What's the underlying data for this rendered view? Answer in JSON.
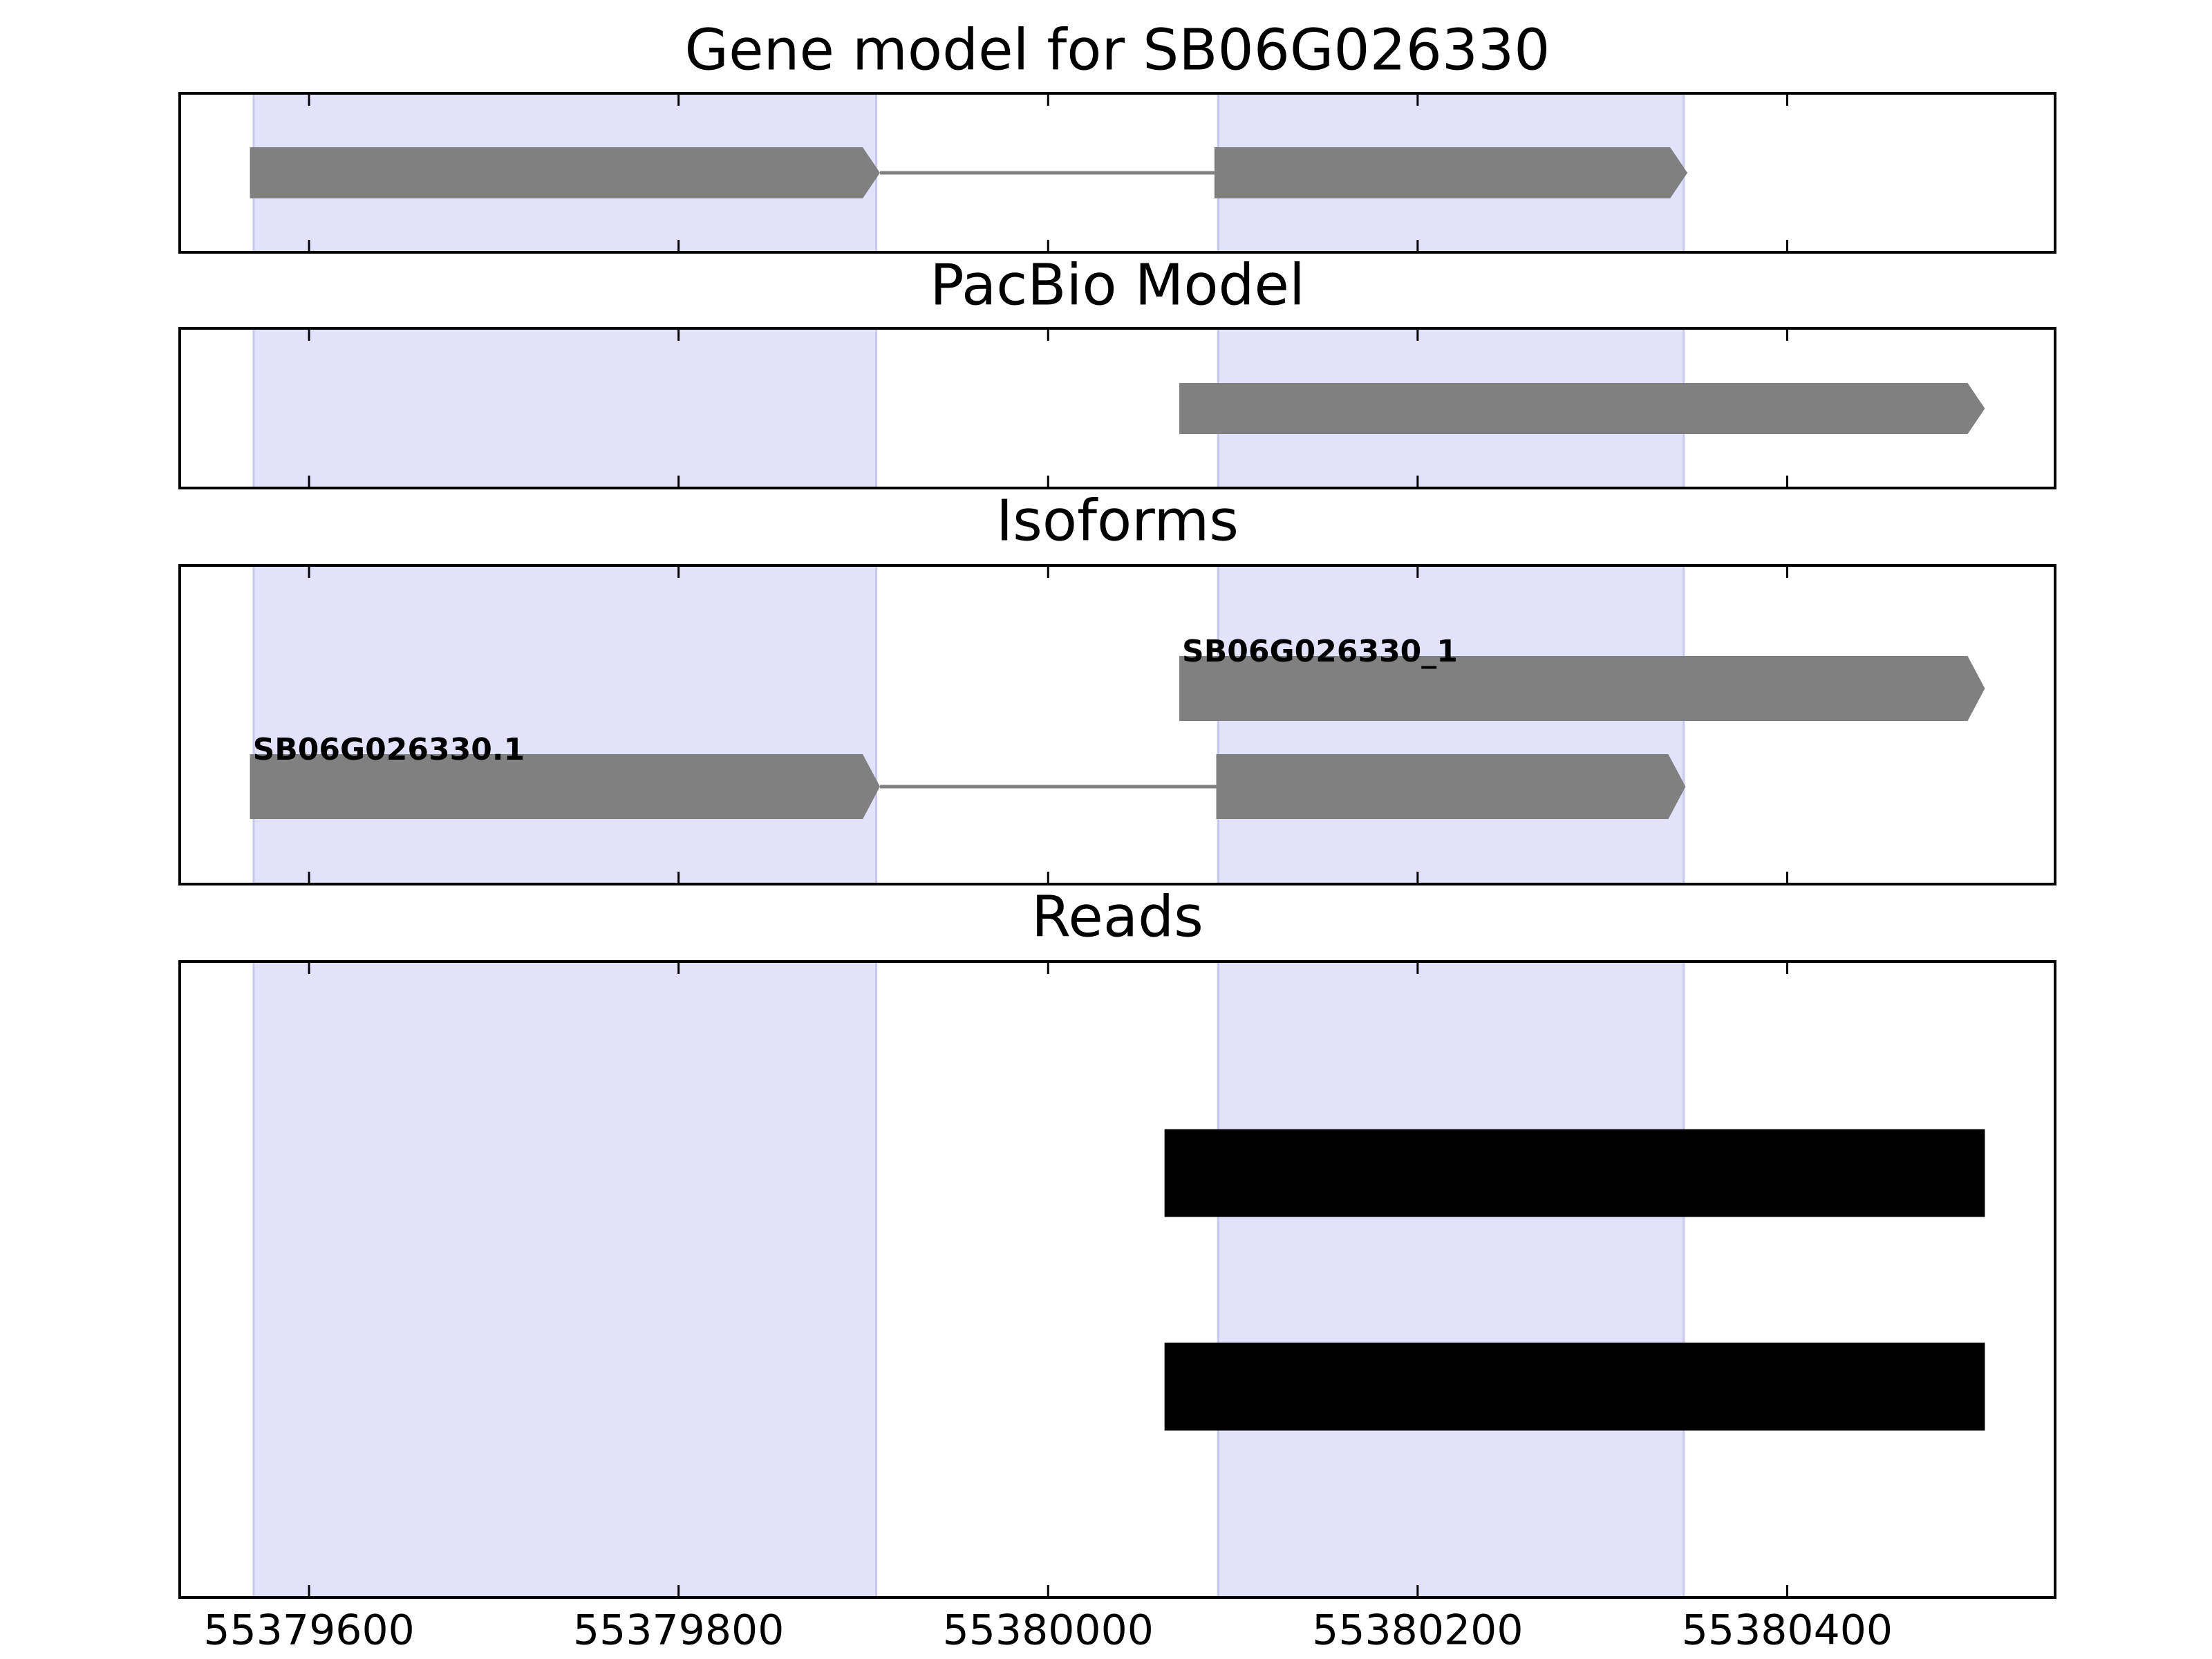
{
  "chart_data": [
    {
      "type": "gene-track",
      "title": "Gene model for SB06G026330",
      "color": "#808080",
      "shade_color": "#e2e2fc",
      "xlim": [
        55379530,
        55380545
      ],
      "xticks": [
        55379600,
        55379800,
        55380000,
        55380200,
        55380400
      ],
      "shaded": [
        [
          55379570,
          55379907
        ],
        [
          55380092,
          55380344
        ]
      ],
      "transcripts": [
        {
          "exons": [
            [
              55379568,
              55379909
            ],
            [
              55380090,
              55380346
            ]
          ]
        }
      ]
    },
    {
      "type": "gene-track",
      "title": "PacBio Model",
      "color": "#808080",
      "shade_color": "#e2e2fc",
      "xlim": [
        55379530,
        55380545
      ],
      "xticks": [
        55379600,
        55379800,
        55380000,
        55380200,
        55380400
      ],
      "shaded": [
        [
          55379570,
          55379907
        ],
        [
          55380092,
          55380344
        ]
      ],
      "transcripts": [
        {
          "exons": [
            [
              55380071,
              55380507
            ]
          ]
        }
      ]
    },
    {
      "type": "gene-track",
      "title": "Isoforms",
      "color": "#808080",
      "shade_color": "#e2e2fc",
      "xlim": [
        55379530,
        55380545
      ],
      "xticks": [
        55379600,
        55379800,
        55380000,
        55380200,
        55380400
      ],
      "shaded": [
        [
          55379570,
          55379907
        ],
        [
          55380092,
          55380344
        ]
      ],
      "transcripts": [
        {
          "name": "SB06G026330_1",
          "exons": [
            [
              55380071,
              55380507
            ]
          ]
        },
        {
          "name": "SB06G026330.1",
          "exons": [
            [
              55379568,
              55379909
            ],
            [
              55380091,
              55380345
            ]
          ]
        }
      ]
    },
    {
      "type": "reads",
      "title": "Reads",
      "color": "#000000",
      "shade_color": "#e2e2fc",
      "xlim": [
        55379530,
        55380545
      ],
      "xticks": [
        55379600,
        55379800,
        55380000,
        55380200,
        55380400
      ],
      "shaded": [
        [
          55379570,
          55379907
        ],
        [
          55380092,
          55380344
        ]
      ],
      "transcripts": [
        {
          "exons": [
            [
              55380063,
              55380507
            ]
          ]
        },
        {
          "exons": [
            [
              55380063,
              55380507
            ]
          ]
        }
      ]
    }
  ]
}
